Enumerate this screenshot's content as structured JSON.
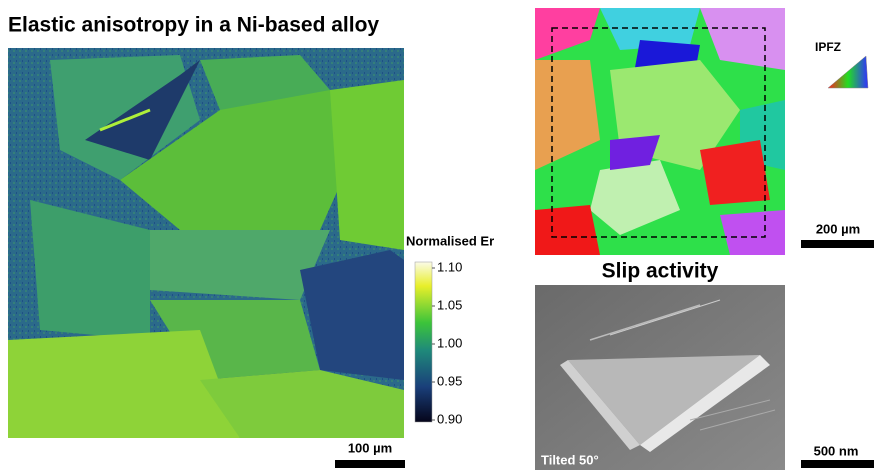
{
  "left_panel": {
    "title": "Elastic anisotropy in a Ni-based alloy",
    "scale_bar": "100 µm",
    "colorbar": {
      "label": "Normalised Er",
      "ticks": [
        "1.10",
        "1.05",
        "1.00",
        "0.95",
        "0.90"
      ]
    }
  },
  "right_top": {
    "legend_label": "IPFZ",
    "scale_bar": "200 µm"
  },
  "right_bottom": {
    "title": "Slip activity",
    "caption": "Tilted 50°",
    "scale_bar": "500 nm"
  }
}
